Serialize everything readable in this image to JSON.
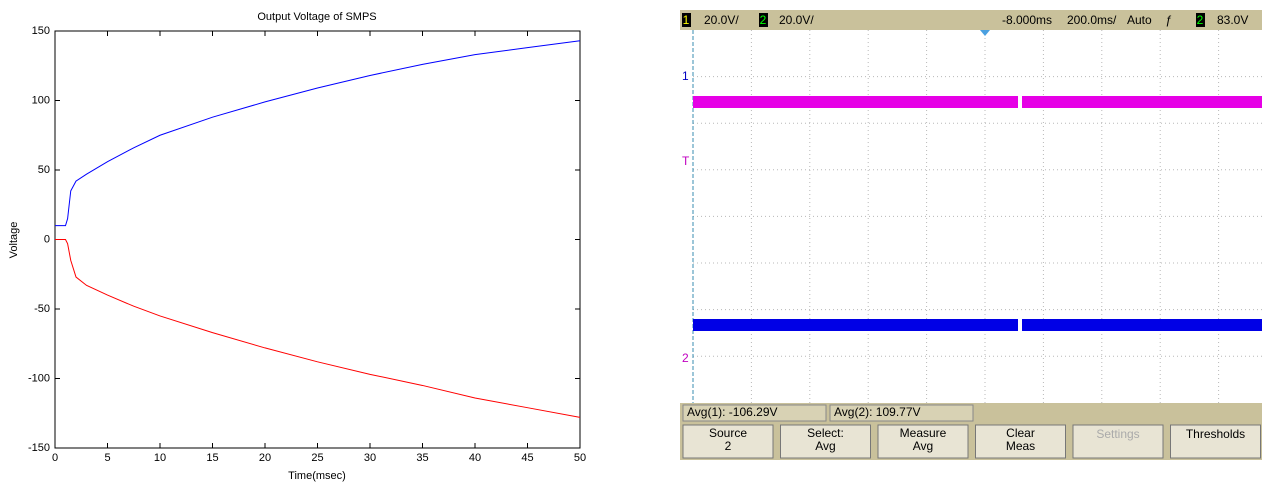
{
  "chart_data": {
    "type": "line",
    "title": "Output Voltage of SMPS",
    "xlabel": "Time(msec)",
    "ylabel": "Voltage",
    "x": [
      0,
      1,
      1.2,
      1.5,
      2,
      3,
      5,
      7.5,
      10,
      15,
      20,
      25,
      30,
      35,
      40,
      45,
      50
    ],
    "series": [
      {
        "color": "#0000ff",
        "values": [
          10,
          10,
          15,
          35,
          42,
          47,
          56,
          66,
          75,
          88,
          99,
          109,
          118,
          126,
          133,
          138,
          143
        ]
      },
      {
        "color": "#ff0000",
        "values": [
          0,
          0,
          -3,
          -15,
          -27,
          -33,
          -40,
          -48,
          -55,
          -67,
          -78,
          -88,
          -97,
          -105,
          -114,
          -121,
          -128
        ]
      }
    ],
    "xlim": [
      0,
      50
    ],
    "xticks": [
      0,
      5,
      10,
      15,
      20,
      25,
      30,
      35,
      40,
      45,
      50
    ],
    "ylim": [
      -150,
      150
    ],
    "yticks": [
      -150,
      -100,
      -50,
      0,
      50,
      100,
      150
    ]
  },
  "scope": {
    "top_bar": {
      "ch1": "1",
      "ch1_scale": "20.0V/",
      "ch2": "2",
      "ch2_scale": "20.0V/",
      "delay": "-8.000ms",
      "timebase": "200.0ms/",
      "mode": "Auto",
      "trigger_source": "2",
      "trigger_level": "83.0V"
    },
    "markers": {
      "ch1": "1",
      "trigger": "T",
      "ch2": "2"
    },
    "measurements": [
      "Avg(1): -106.29V",
      "Avg(2): 109.77V"
    ],
    "softkeys": [
      [
        "Source",
        "2"
      ],
      [
        "Select:",
        "Avg"
      ],
      [
        "Measure",
        "Avg"
      ],
      [
        "Clear",
        "Meas"
      ],
      [
        "Settings"
      ],
      [
        "Thresholds"
      ]
    ]
  }
}
